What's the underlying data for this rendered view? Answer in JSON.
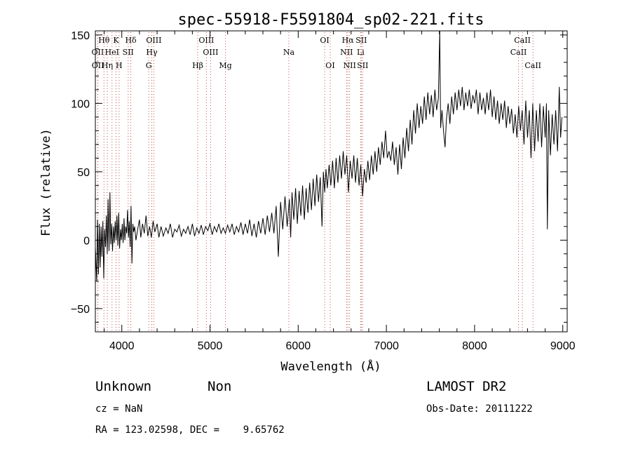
{
  "chart_data": {
    "type": "line",
    "title": "spec-55918-F5591804_sp02-221.fits",
    "xlabel": "Wavelength (Å)",
    "ylabel": "Flux (relative)",
    "xlim": [
      3700,
      9050
    ],
    "ylim": [
      -67,
      153
    ],
    "x_ticks": [
      4000,
      5000,
      6000,
      7000,
      8000,
      9000
    ],
    "y_ticks": [
      -50,
      0,
      50,
      100,
      150
    ],
    "grid": false,
    "series": [
      {
        "values": [
          [
            3700,
            -5
          ],
          [
            3715,
            -30
          ],
          [
            3725,
            15
          ],
          [
            3735,
            -25
          ],
          [
            3745,
            12
          ],
          [
            3755,
            -20
          ],
          [
            3765,
            10
          ],
          [
            3775,
            -12
          ],
          [
            3785,
            14
          ],
          [
            3795,
            -28
          ],
          [
            3805,
            8
          ],
          [
            3815,
            -5
          ],
          [
            3825,
            18
          ],
          [
            3835,
            -10
          ],
          [
            3845,
            30
          ],
          [
            3855,
            -8
          ],
          [
            3865,
            35
          ],
          [
            3875,
            -3
          ],
          [
            3885,
            12
          ],
          [
            3895,
            -8
          ],
          [
            3905,
            10
          ],
          [
            3915,
            -2
          ],
          [
            3925,
            14
          ],
          [
            3935,
            0
          ],
          [
            3945,
            18
          ],
          [
            3955,
            -4
          ],
          [
            3965,
            20
          ],
          [
            3975,
            -6
          ],
          [
            3985,
            8
          ],
          [
            3995,
            0
          ],
          [
            4005,
            12
          ],
          [
            4015,
            -2
          ],
          [
            4025,
            16
          ],
          [
            4035,
            0
          ],
          [
            4045,
            10
          ],
          [
            4055,
            5
          ],
          [
            4065,
            22
          ],
          [
            4075,
            2
          ],
          [
            4085,
            14
          ],
          [
            4095,
            -5
          ],
          [
            4105,
            25
          ],
          [
            4115,
            -17
          ],
          [
            4125,
            12
          ],
          [
            4135,
            6
          ],
          [
            4145,
            10
          ],
          [
            4160,
            0
          ],
          [
            4180,
            8
          ],
          [
            4200,
            15
          ],
          [
            4215,
            2
          ],
          [
            4235,
            12
          ],
          [
            4255,
            5
          ],
          [
            4275,
            18
          ],
          [
            4295,
            3
          ],
          [
            4315,
            10
          ],
          [
            4335,
            2
          ],
          [
            4355,
            14
          ],
          [
            4375,
            6
          ],
          [
            4400,
            12
          ],
          [
            4420,
            2
          ],
          [
            4445,
            10
          ],
          [
            4470,
            3
          ],
          [
            4500,
            9
          ],
          [
            4525,
            5
          ],
          [
            4550,
            12
          ],
          [
            4575,
            2
          ],
          [
            4600,
            8
          ],
          [
            4625,
            6
          ],
          [
            4650,
            11
          ],
          [
            4675,
            3
          ],
          [
            4700,
            8
          ],
          [
            4725,
            5
          ],
          [
            4750,
            10
          ],
          [
            4775,
            4
          ],
          [
            4800,
            12
          ],
          [
            4825,
            3
          ],
          [
            4850,
            9
          ],
          [
            4875,
            5
          ],
          [
            4900,
            11
          ],
          [
            4925,
            4
          ],
          [
            4950,
            10
          ],
          [
            4975,
            7
          ],
          [
            5000,
            12
          ],
          [
            5025,
            4
          ],
          [
            5050,
            10
          ],
          [
            5075,
            6
          ],
          [
            5100,
            12
          ],
          [
            5125,
            5
          ],
          [
            5150,
            9
          ],
          [
            5175,
            5
          ],
          [
            5200,
            11
          ],
          [
            5225,
            6
          ],
          [
            5250,
            12
          ],
          [
            5275,
            4
          ],
          [
            5300,
            10
          ],
          [
            5325,
            6
          ],
          [
            5350,
            13
          ],
          [
            5375,
            4
          ],
          [
            5400,
            12
          ],
          [
            5425,
            5
          ],
          [
            5450,
            15
          ],
          [
            5475,
            3
          ],
          [
            5500,
            12
          ],
          [
            5525,
            2
          ],
          [
            5550,
            14
          ],
          [
            5575,
            5
          ],
          [
            5600,
            16
          ],
          [
            5625,
            4
          ],
          [
            5650,
            18
          ],
          [
            5675,
            6
          ],
          [
            5700,
            20
          ],
          [
            5725,
            5
          ],
          [
            5750,
            25
          ],
          [
            5775,
            -12
          ],
          [
            5800,
            28
          ],
          [
            5825,
            8
          ],
          [
            5850,
            32
          ],
          [
            5875,
            10
          ],
          [
            5900,
            30
          ],
          [
            5915,
            2
          ],
          [
            5930,
            35
          ],
          [
            5950,
            15
          ],
          [
            5970,
            38
          ],
          [
            5990,
            12
          ],
          [
            6010,
            36
          ],
          [
            6030,
            18
          ],
          [
            6050,
            40
          ],
          [
            6070,
            15
          ],
          [
            6090,
            38
          ],
          [
            6110,
            20
          ],
          [
            6130,
            42
          ],
          [
            6150,
            22
          ],
          [
            6170,
            45
          ],
          [
            6190,
            25
          ],
          [
            6210,
            48
          ],
          [
            6230,
            28
          ],
          [
            6250,
            46
          ],
          [
            6270,
            10
          ],
          [
            6285,
            50
          ],
          [
            6300,
            35
          ],
          [
            6315,
            52
          ],
          [
            6330,
            38
          ],
          [
            6350,
            55
          ],
          [
            6370,
            40
          ],
          [
            6390,
            58
          ],
          [
            6410,
            38
          ],
          [
            6430,
            60
          ],
          [
            6450,
            42
          ],
          [
            6470,
            62
          ],
          [
            6490,
            45
          ],
          [
            6510,
            65
          ],
          [
            6530,
            48
          ],
          [
            6550,
            62
          ],
          [
            6570,
            35
          ],
          [
            6590,
            58
          ],
          [
            6610,
            45
          ],
          [
            6630,
            62
          ],
          [
            6650,
            42
          ],
          [
            6670,
            60
          ],
          [
            6690,
            40
          ],
          [
            6710,
            55
          ],
          [
            6730,
            32
          ],
          [
            6750,
            52
          ],
          [
            6770,
            42
          ],
          [
            6790,
            58
          ],
          [
            6810,
            44
          ],
          [
            6830,
            62
          ],
          [
            6850,
            48
          ],
          [
            6870,
            65
          ],
          [
            6890,
            50
          ],
          [
            6910,
            68
          ],
          [
            6930,
            55
          ],
          [
            6950,
            72
          ],
          [
            6970,
            60
          ],
          [
            6990,
            80
          ],
          [
            7010,
            60
          ],
          [
            7030,
            65
          ],
          [
            7050,
            58
          ],
          [
            7070,
            72
          ],
          [
            7090,
            55
          ],
          [
            7110,
            68
          ],
          [
            7130,
            48
          ],
          [
            7150,
            70
          ],
          [
            7170,
            52
          ],
          [
            7190,
            75
          ],
          [
            7210,
            60
          ],
          [
            7230,
            82
          ],
          [
            7250,
            65
          ],
          [
            7270,
            88
          ],
          [
            7290,
            70
          ],
          [
            7310,
            95
          ],
          [
            7330,
            78
          ],
          [
            7350,
            100
          ],
          [
            7370,
            82
          ],
          [
            7390,
            98
          ],
          [
            7410,
            85
          ],
          [
            7430,
            105
          ],
          [
            7450,
            88
          ],
          [
            7470,
            108
          ],
          [
            7490,
            92
          ],
          [
            7510,
            106
          ],
          [
            7530,
            90
          ],
          [
            7550,
            110
          ],
          [
            7570,
            95
          ],
          [
            7590,
            104
          ],
          [
            7605,
            153
          ],
          [
            7615,
            82
          ],
          [
            7630,
            95
          ],
          [
            7650,
            78
          ],
          [
            7665,
            68
          ],
          [
            7680,
            88
          ],
          [
            7700,
            100
          ],
          [
            7720,
            85
          ],
          [
            7740,
            105
          ],
          [
            7760,
            92
          ],
          [
            7780,
            108
          ],
          [
            7800,
            95
          ],
          [
            7820,
            110
          ],
          [
            7840,
            98
          ],
          [
            7860,
            112
          ],
          [
            7880,
            95
          ],
          [
            7900,
            108
          ],
          [
            7920,
            98
          ],
          [
            7940,
            110
          ],
          [
            7960,
            96
          ],
          [
            7980,
            106
          ],
          [
            8000,
            100
          ],
          [
            8020,
            110
          ],
          [
            8040,
            92
          ],
          [
            8060,
            108
          ],
          [
            8080,
            95
          ],
          [
            8100,
            104
          ],
          [
            8120,
            92
          ],
          [
            8140,
            108
          ],
          [
            8160,
            95
          ],
          [
            8180,
            110
          ],
          [
            8200,
            90
          ],
          [
            8220,
            105
          ],
          [
            8240,
            88
          ],
          [
            8260,
            102
          ],
          [
            8280,
            85
          ],
          [
            8300,
            100
          ],
          [
            8320,
            88
          ],
          [
            8340,
            102
          ],
          [
            8360,
            82
          ],
          [
            8380,
            98
          ],
          [
            8400,
            85
          ],
          [
            8420,
            96
          ],
          [
            8440,
            78
          ],
          [
            8460,
            92
          ],
          [
            8480,
            75
          ],
          [
            8500,
            98
          ],
          [
            8520,
            80
          ],
          [
            8540,
            95
          ],
          [
            8560,
            70
          ],
          [
            8580,
            102
          ],
          [
            8600,
            75
          ],
          [
            8620,
            95
          ],
          [
            8640,
            60
          ],
          [
            8660,
            100
          ],
          [
            8680,
            65
          ],
          [
            8700,
            95
          ],
          [
            8720,
            72
          ],
          [
            8740,
            100
          ],
          [
            8760,
            68
          ],
          [
            8780,
            98
          ],
          [
            8800,
            75
          ],
          [
            8815,
            100
          ],
          [
            8825,
            8
          ],
          [
            8840,
            95
          ],
          [
            8860,
            62
          ],
          [
            8880,
            92
          ],
          [
            8900,
            70
          ],
          [
            8920,
            95
          ],
          [
            8940,
            65
          ],
          [
            8960,
            112
          ],
          [
            8975,
            75
          ],
          [
            8990,
            90
          ]
        ]
      }
    ],
    "spectral_lines": [
      {
        "label": "Hθ",
        "wavelength": 3798,
        "row": 1
      },
      {
        "label": "OII",
        "wavelength": 3727,
        "row": 2
      },
      {
        "label": "OII",
        "wavelength": 3729,
        "row": 3
      },
      {
        "label": "K",
        "wavelength": 3934,
        "row": 1
      },
      {
        "label": "HeI",
        "wavelength": 3889,
        "row": 2
      },
      {
        "label": "Hη",
        "wavelength": 3835,
        "row": 3
      },
      {
        "label": "SII",
        "wavelength": 4072,
        "row": 2
      },
      {
        "label": "H",
        "wavelength": 3969,
        "row": 3
      },
      {
        "label": "Hδ",
        "wavelength": 4102,
        "row": 1
      },
      {
        "label": "OIII",
        "wavelength": 4363,
        "row": 1
      },
      {
        "label": "Hγ",
        "wavelength": 4340,
        "row": 2
      },
      {
        "label": "G",
        "wavelength": 4305,
        "row": 3
      },
      {
        "label": "OIII",
        "wavelength": 4959,
        "row": 1
      },
      {
        "label": "OIII",
        "wavelength": 5007,
        "row": 2
      },
      {
        "label": "Hβ",
        "wavelength": 4861,
        "row": 3
      },
      {
        "label": "Mg",
        "wavelength": 5175,
        "row": 3
      },
      {
        "label": "Na",
        "wavelength": 5894,
        "row": 2
      },
      {
        "label": "OI",
        "wavelength": 6300,
        "row": 1
      },
      {
        "label": "OI",
        "wavelength": 6363,
        "row": 3
      },
      {
        "label": "Hα",
        "wavelength": 6563,
        "row": 1
      },
      {
        "label": "SII",
        "wavelength": 6716,
        "row": 1
      },
      {
        "label": "NII",
        "wavelength": 6548,
        "row": 2
      },
      {
        "label": "Li",
        "wavelength": 6708,
        "row": 2
      },
      {
        "label": "NII",
        "wavelength": 6583,
        "row": 3
      },
      {
        "label": "SII",
        "wavelength": 6731,
        "row": 3
      },
      {
        "label": "CaII",
        "wavelength": 8542,
        "row": 1
      },
      {
        "label": "CaII",
        "wavelength": 8498,
        "row": 2
      },
      {
        "label": "CaII",
        "wavelength": 8662,
        "row": 3
      }
    ]
  },
  "info": {
    "class_label": "Unknown",
    "subclass_label": "Non",
    "survey": "LAMOST DR2",
    "cz": "cz = NaN",
    "obs_date": "Obs-Date: 20111222",
    "coords": "RA = 123.02598, DEC =    9.65762"
  },
  "colors": {
    "spectrum": "#000000",
    "line_markers": "#c0504d",
    "background": "#ffffff"
  }
}
